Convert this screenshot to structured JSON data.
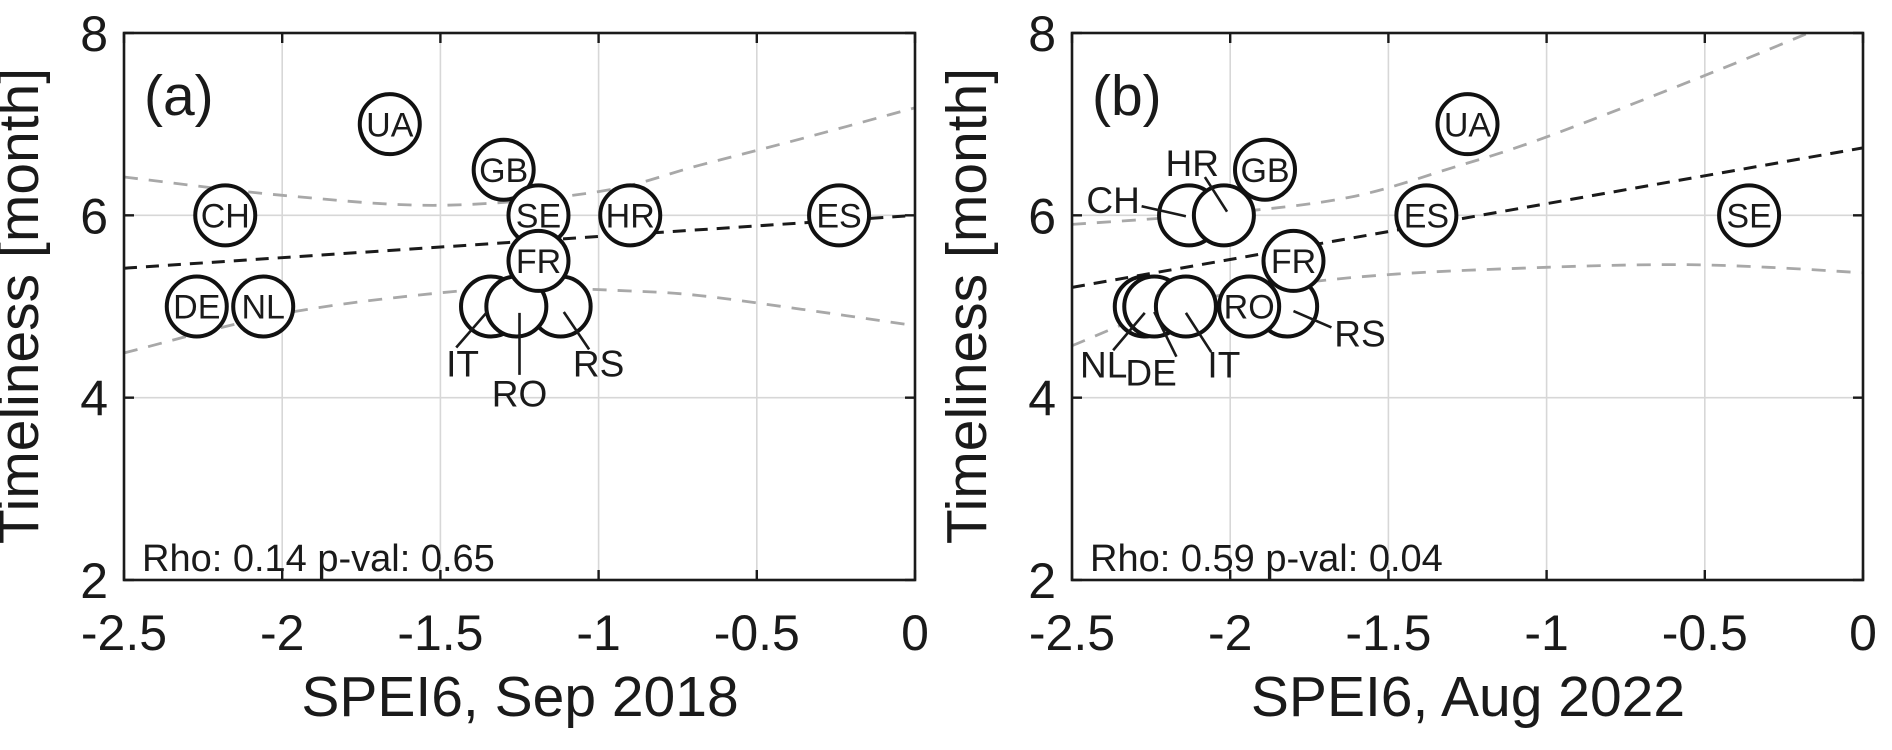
{
  "figure": {
    "description": "Two-panel bubble scatter plots of country reporting timeliness versus SPEI6 drought index with linear fit and confidence bands"
  },
  "colors": {
    "background": "#ffffff",
    "axis": "#1a1a1a",
    "grid": "#d7d7d7",
    "fit_line": "#1a1a1a",
    "confidence_band": "#a8a8a8",
    "bubble_fill": "#ffffff",
    "bubble_stroke": "#111111",
    "leader_line": "#1a1a1a",
    "text": "#1a1a1a"
  },
  "chart_data": [
    {
      "type": "scatter",
      "panel_label": "(a)",
      "xlabel": "SPEI6, Sep 2018",
      "ylabel": "Timeliness [month]",
      "annotation": "Rho: 0.14 p-val: 0.65",
      "xlim": [
        -2.5,
        0
      ],
      "ylim": [
        2,
        8
      ],
      "x_ticks": [
        -2.5,
        -2,
        -1.5,
        -1,
        -0.5,
        0
      ],
      "y_ticks": [
        2,
        4,
        6,
        8
      ],
      "grid": true,
      "legend": "none",
      "points": [
        {
          "label": "IT",
          "x": -1.34,
          "y": 5,
          "label_inside": false,
          "label_at": [
            -1.43,
            4.38
          ],
          "leader": [
            [
              -1.45,
              4.55
            ],
            [
              -1.35,
              4.95
            ]
          ]
        },
        {
          "label": "RS",
          "x": -1.12,
          "y": 5,
          "label_inside": false,
          "label_at": [
            -1.0,
            4.38
          ],
          "leader": [
            [
              -1.03,
              4.53
            ],
            [
              -1.11,
              4.94
            ]
          ]
        },
        {
          "label": "RO",
          "x": -1.26,
          "y": 5,
          "label_inside": false,
          "label_at": [
            -1.25,
            4.05
          ],
          "leader": [
            [
              -1.25,
              4.25
            ],
            [
              -1.25,
              4.93
            ]
          ]
        },
        {
          "label": "GB",
          "x": -1.3,
          "y": 6.5,
          "label_inside": true
        },
        {
          "label": "SE",
          "x": -1.19,
          "y": 6,
          "label_inside": true
        },
        {
          "label": "FR",
          "x": -1.19,
          "y": 5.5,
          "label_inside": true
        },
        {
          "label": "UA",
          "x": -1.66,
          "y": 7,
          "label_inside": true
        },
        {
          "label": "CH",
          "x": -2.18,
          "y": 6,
          "label_inside": true
        },
        {
          "label": "HR",
          "x": -0.9,
          "y": 6,
          "label_inside": true
        },
        {
          "label": "ES",
          "x": -0.24,
          "y": 6,
          "label_inside": true
        },
        {
          "label": "DE",
          "x": -2.27,
          "y": 5,
          "label_inside": true
        },
        {
          "label": "NL",
          "x": -2.06,
          "y": 5,
          "label_inside": true
        }
      ],
      "fit_line": [
        [
          -2.5,
          5.42
        ],
        [
          0,
          6.0
        ]
      ],
      "ci_upper": [
        [
          -2.5,
          6.42
        ],
        [
          -2.0,
          6.22
        ],
        [
          -1.5,
          6.11
        ],
        [
          -1.0,
          6.26
        ],
        [
          -0.68,
          6.55
        ],
        [
          -0.36,
          6.84
        ],
        [
          0,
          7.18
        ]
      ],
      "ci_lower": [
        [
          -2.5,
          4.49
        ],
        [
          -2.0,
          4.92
        ],
        [
          -1.5,
          5.15
        ],
        [
          -1.2,
          5.2
        ],
        [
          -0.9,
          5.17
        ],
        [
          -0.68,
          5.12
        ],
        [
          -0.36,
          4.97
        ],
        [
          0,
          4.79
        ]
      ]
    },
    {
      "type": "scatter",
      "panel_label": "(b)",
      "xlabel": "SPEI6, Aug 2022",
      "ylabel": "Timeliness [month]",
      "annotation": "Rho: 0.59 p-val: 0.04",
      "xlim": [
        -2.5,
        0
      ],
      "ylim": [
        2,
        8
      ],
      "x_ticks": [
        -2.5,
        -2,
        -1.5,
        -1,
        -0.5,
        0
      ],
      "y_ticks": [
        2,
        4,
        6,
        8
      ],
      "grid": true,
      "legend": "none",
      "points": [
        {
          "label": "NL",
          "x": -2.27,
          "y": 5,
          "label_inside": false,
          "label_at": [
            -2.4,
            4.37
          ],
          "leader": [
            [
              -2.37,
              4.52
            ],
            [
              -2.27,
              4.93
            ]
          ]
        },
        {
          "label": "DE",
          "x": -2.24,
          "y": 5,
          "label_inside": false,
          "label_at": [
            -2.25,
            4.28
          ],
          "leader": [
            [
              -2.17,
              4.45
            ],
            [
              -2.24,
              4.94
            ]
          ]
        },
        {
          "label": "IT",
          "x": -2.14,
          "y": 5,
          "label_inside": false,
          "label_at": [
            -2.02,
            4.37
          ],
          "leader": [
            [
              -2.06,
              4.5
            ],
            [
              -2.14,
              4.93
            ]
          ]
        },
        {
          "label": "RS",
          "x": -1.82,
          "y": 5,
          "label_inside": false,
          "label_at": [
            -1.59,
            4.71
          ],
          "leader": [
            [
              -1.68,
              4.77
            ],
            [
              -1.8,
              4.95
            ]
          ]
        },
        {
          "label": "RO",
          "x": -1.94,
          "y": 5,
          "label_inside": true
        },
        {
          "label": "FR",
          "x": -1.8,
          "y": 5.5,
          "label_inside": true
        },
        {
          "label": "CH",
          "x": -2.13,
          "y": 6,
          "label_inside": false,
          "label_at": [
            -2.37,
            6.17
          ],
          "leader": [
            [
              -2.28,
              6.1
            ],
            [
              -2.14,
              5.99
            ]
          ]
        },
        {
          "label": "HR",
          "x": -2.02,
          "y": 6,
          "label_inside": false,
          "label_at": [
            -2.12,
            6.58
          ],
          "leader": [
            [
              -2.08,
              6.42
            ],
            [
              -2.01,
              6.04
            ]
          ]
        },
        {
          "label": "GB",
          "x": -1.89,
          "y": 6.5,
          "label_inside": true
        },
        {
          "label": "UA",
          "x": -1.25,
          "y": 7,
          "label_inside": true
        },
        {
          "label": "ES",
          "x": -1.38,
          "y": 6,
          "label_inside": true
        },
        {
          "label": "SE",
          "x": -0.36,
          "y": 6,
          "label_inside": true
        }
      ],
      "fit_line": [
        [
          -2.5,
          5.21
        ],
        [
          0,
          6.74
        ]
      ],
      "ci_upper": [
        [
          -2.5,
          5.9
        ],
        [
          -2.0,
          6.03
        ],
        [
          -1.62,
          6.2
        ],
        [
          -1.3,
          6.52
        ],
        [
          -1.0,
          6.86
        ],
        [
          -0.46,
          7.59
        ],
        [
          0,
          8.25
        ]
      ],
      "ci_lower": [
        [
          -2.5,
          4.57
        ],
        [
          -2.2,
          4.98
        ],
        [
          -1.9,
          5.2
        ],
        [
          -1.5,
          5.35
        ],
        [
          -1.0,
          5.43
        ],
        [
          -0.6,
          5.46
        ],
        [
          -0.3,
          5.43
        ],
        [
          0,
          5.37
        ]
      ]
    }
  ]
}
